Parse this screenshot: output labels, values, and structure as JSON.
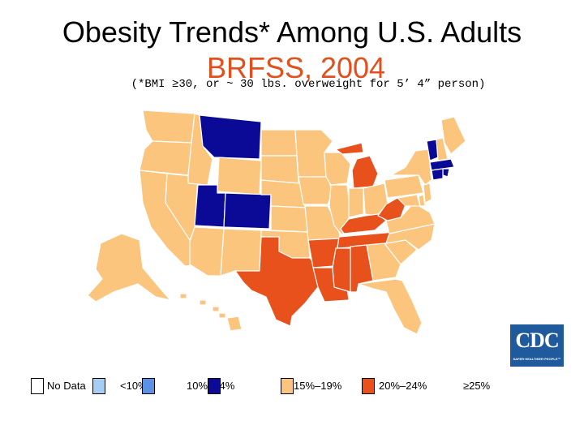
{
  "title": "Obesity Trends* Among U.S. Adults",
  "subtitle": "BRFSS, 2004",
  "note": "(*BMI ≥30, or ~ 30 lbs. overweight for 5’ 4” person)",
  "logo_text": "CDC",
  "logo_tagline": "SAFER·HEALTHIER·PEOPLE™",
  "colors": {
    "no_data": "#ffffff",
    "lt10": "#a6cef5",
    "10_14": "#5d91e3",
    "15_19": "#0a0a96",
    "20_24": "#fcc57e",
    "25_plus": "#e8501c",
    "border": "#ffffff"
  },
  "legend": [
    {
      "label": "No Data",
      "color_key": "no_data"
    },
    {
      "label": "<10%",
      "color_key": "lt10"
    },
    {
      "label": "10%–14%",
      "color_key": "10_14"
    },
    {
      "label": "15%–19%",
      "color_key": "15_19"
    },
    {
      "label": "20%–24%",
      "color_key": "20_24"
    },
    {
      "label": "≥25%",
      "color_key": "25_plus"
    }
  ],
  "category_by_state": {
    "WA": "20_24",
    "OR": "20_24",
    "CA": "20_24",
    "NV": "20_24",
    "ID": "20_24",
    "MT": "15_19",
    "WY": "20_24",
    "UT": "15_19",
    "CO": "15_19",
    "AZ": "20_24",
    "NM": "20_24",
    "ND": "20_24",
    "SD": "20_24",
    "NE": "20_24",
    "KS": "20_24",
    "OK": "20_24",
    "TX": "25_plus",
    "MN": "20_24",
    "IA": "20_24",
    "MO": "20_24",
    "AR": "25_plus",
    "LA": "25_plus",
    "WI": "20_24",
    "IL": "20_24",
    "MI": "25_plus",
    "IN": "20_24",
    "OH": "20_24",
    "KY": "25_plus",
    "TN": "25_plus",
    "MS": "25_plus",
    "AL": "25_plus",
    "GA": "20_24",
    "FL": "20_24",
    "SC": "20_24",
    "NC": "20_24",
    "VA": "20_24",
    "WV": "25_plus",
    "PA": "20_24",
    "NY": "20_24",
    "VT": "15_19",
    "NH": "20_24",
    "ME": "20_24",
    "MA": "15_19",
    "RI": "15_19",
    "CT": "15_19",
    "NJ": "20_24",
    "DE": "20_24",
    "MD": "20_24",
    "AK": "20_24",
    "HI": "20_24"
  }
}
